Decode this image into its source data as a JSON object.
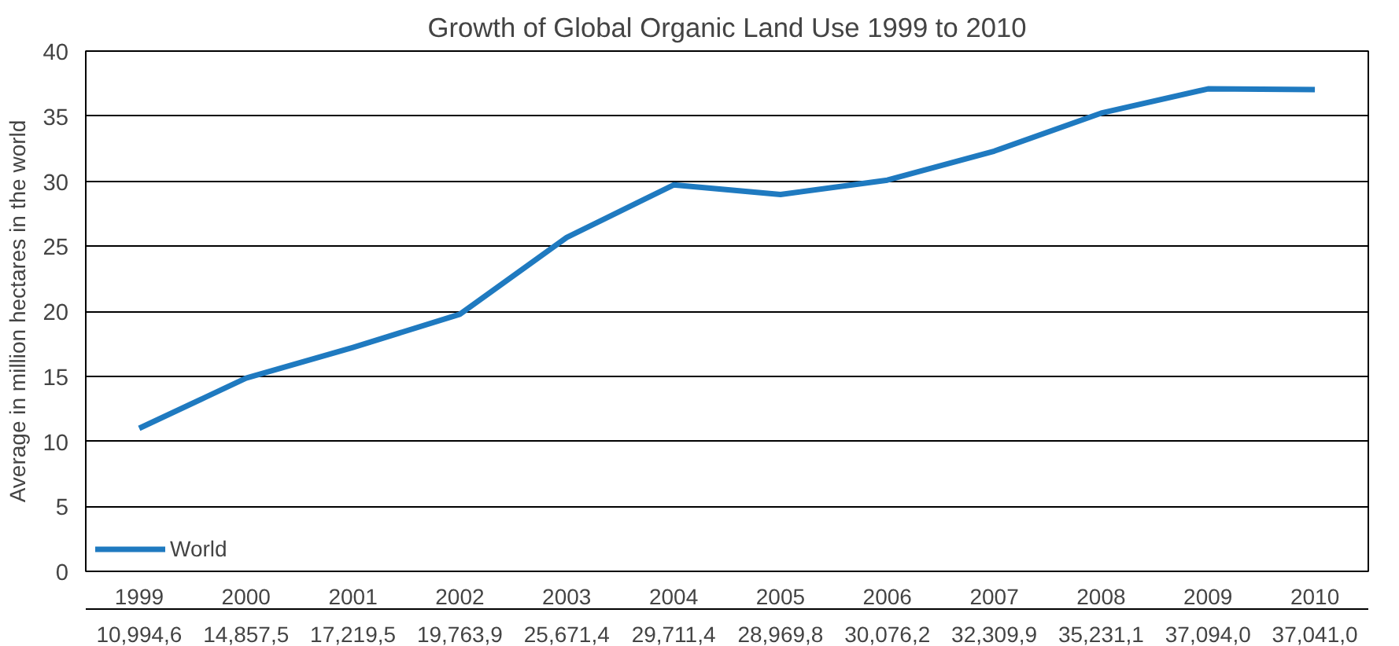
{
  "chart_data": {
    "type": "line",
    "title": "Growth of Global Organic Land Use 1999 to 2010",
    "ylabel": "Average in million hectares in the world",
    "categories": [
      "1999",
      "2000",
      "2001",
      "2002",
      "2003",
      "2004",
      "2005",
      "2006",
      "2007",
      "2008",
      "2009",
      "2010"
    ],
    "series": [
      {
        "name": "World",
        "color": "#1f7ac0",
        "values": [
          10.9946,
          14.8575,
          17.2195,
          19.7639,
          25.6714,
          29.7114,
          28.9698,
          30.0762,
          32.3099,
          35.2311,
          37.094,
          37.041
        ],
        "value_labels": [
          "10,994,6",
          "14,857,5",
          "17,219,5",
          "19,763,9",
          "25,671,4",
          "29,711,4",
          "28,969,8",
          "30,076,2",
          "32,309,9",
          "35,231,1",
          "37,094,0",
          "37,041,0"
        ]
      }
    ],
    "ylim": [
      0,
      40
    ],
    "yticks": [
      0,
      5,
      10,
      15,
      20,
      25,
      30,
      35,
      40
    ],
    "grid": "y",
    "legend": "bottom left",
    "marker": "none",
    "line_style": "solid"
  }
}
